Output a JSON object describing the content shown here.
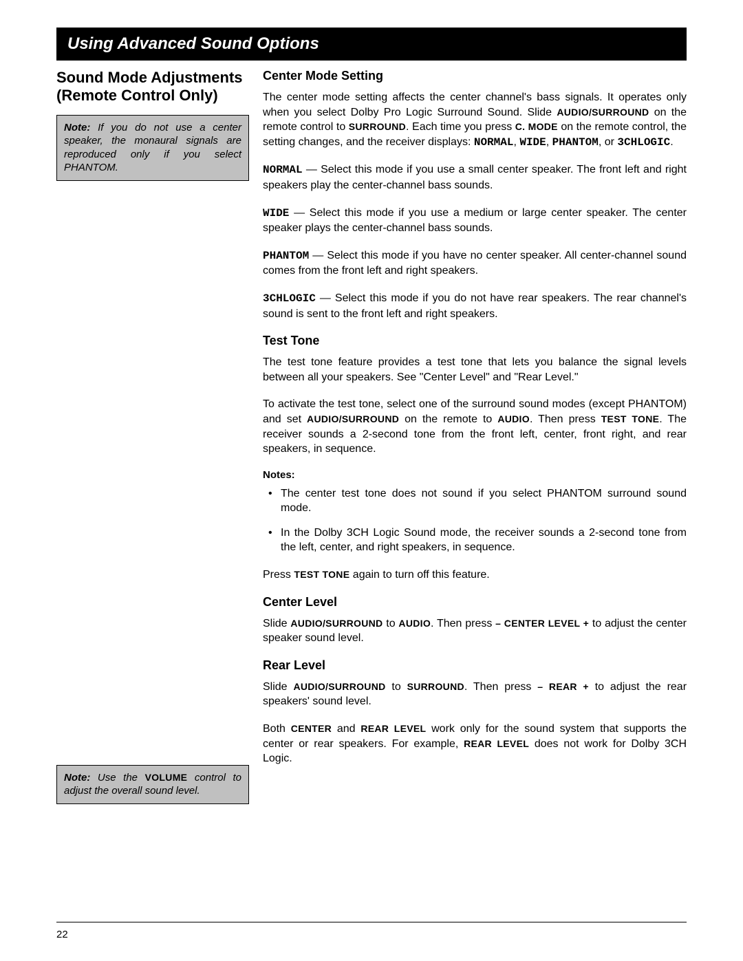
{
  "banner": "Using Advanced Sound Options",
  "main_heading_l1": "Sound Mode Adjustments",
  "main_heading_l2": "(Remote Control Only)",
  "note1_label": "Note:",
  "note1_body": " If you do not use a center speaker, the monaural signals are reproduced only if you select PHANTOM.",
  "note2_label": "Note:",
  "note2_a": " Use the ",
  "note2_vol": "VOLUME",
  "note2_b": " control to adjust the overall sound level.",
  "h_center_mode": "Center Mode Setting",
  "p_cm_intro_a": "The center mode setting affects the center channel's bass signals. It operates only when you select Dolby Pro Logic Surround Sound. Slide ",
  "sc_audio_surround": "AUDIO/SURROUND",
  "p_cm_intro_b": " on the remote control to ",
  "sc_surround": "SURROUND",
  "p_cm_intro_c": ". Each time you press ",
  "sc_cmode": "C. MODE",
  "p_cm_intro_d": " on the remote control, the setting changes, and the receiver displays: ",
  "m_normal": "NORMAL",
  "m_wide": "WIDE",
  "m_phantom": "PHANTOM",
  "m_3ch": "3CHLOGIC",
  "p_normal": "  —  Select this mode if you use a small center speaker. The front left and right speakers play the center-channel bass sounds.",
  "p_wide": "  —  Select this mode if you use a medium or large center speaker. The center speaker plays the center-channel bass sounds.",
  "p_phantom": "  —  Select this mode if you have no center speaker. All center-channel sound comes from the front left and right speakers.",
  "p_3ch": "  —  Select this mode if you do not have rear speakers. The rear channel's sound is sent to the front left and right speakers.",
  "h_test_tone": "Test Tone",
  "p_tt1": "The test tone feature provides a test tone that lets you balance the signal levels between all your speakers. See \"Center Level\" and \"Rear Level.\"",
  "p_tt2_a": "To activate the test tone, select one of the surround sound modes (except PHANTOM) and set ",
  "p_tt2_b": " on the remote to ",
  "sc_audio": "AUDIO",
  "p_tt2_c": ". Then press ",
  "sc_test_tone": "TEST TONE",
  "p_tt2_d": ". The receiver sounds a 2-second tone from the front left, center, front right, and rear speakers, in sequence.",
  "notes_label": "Notes:",
  "note_li1": "The center test tone does not sound if you select PHANTOM surround sound mode.",
  "note_li2": "In the Dolby 3CH Logic Sound mode, the receiver sounds a 2-second tone from the left, center, and right speakers, in sequence.",
  "p_tt3_a": "Press ",
  "p_tt3_b": " again to turn off this feature.",
  "h_center_level": "Center Level",
  "p_cl_a": "Slide ",
  "p_cl_b": " to ",
  "p_cl_c": ". Then press ",
  "sc_center_level": "– CENTER LEVEL +",
  "p_cl_d": " to adjust the center speaker sound level.",
  "h_rear_level": "Rear Level",
  "p_rl_a": "Slide ",
  "p_rl_b": " to ",
  "p_rl_c": ". Then press ",
  "sc_rear": "– REAR +",
  "p_rl_d": " to adjust the rear speakers' sound level.",
  "p_both_a": "Both ",
  "sc_center": "CENTER",
  "p_both_b": " and ",
  "sc_rear_level": "REAR LEVEL",
  "p_both_c": " work only for the sound system that supports the center or rear speakers. For example, ",
  "p_both_d": " does not work for Dolby 3CH Logic.",
  "page_num": "22"
}
